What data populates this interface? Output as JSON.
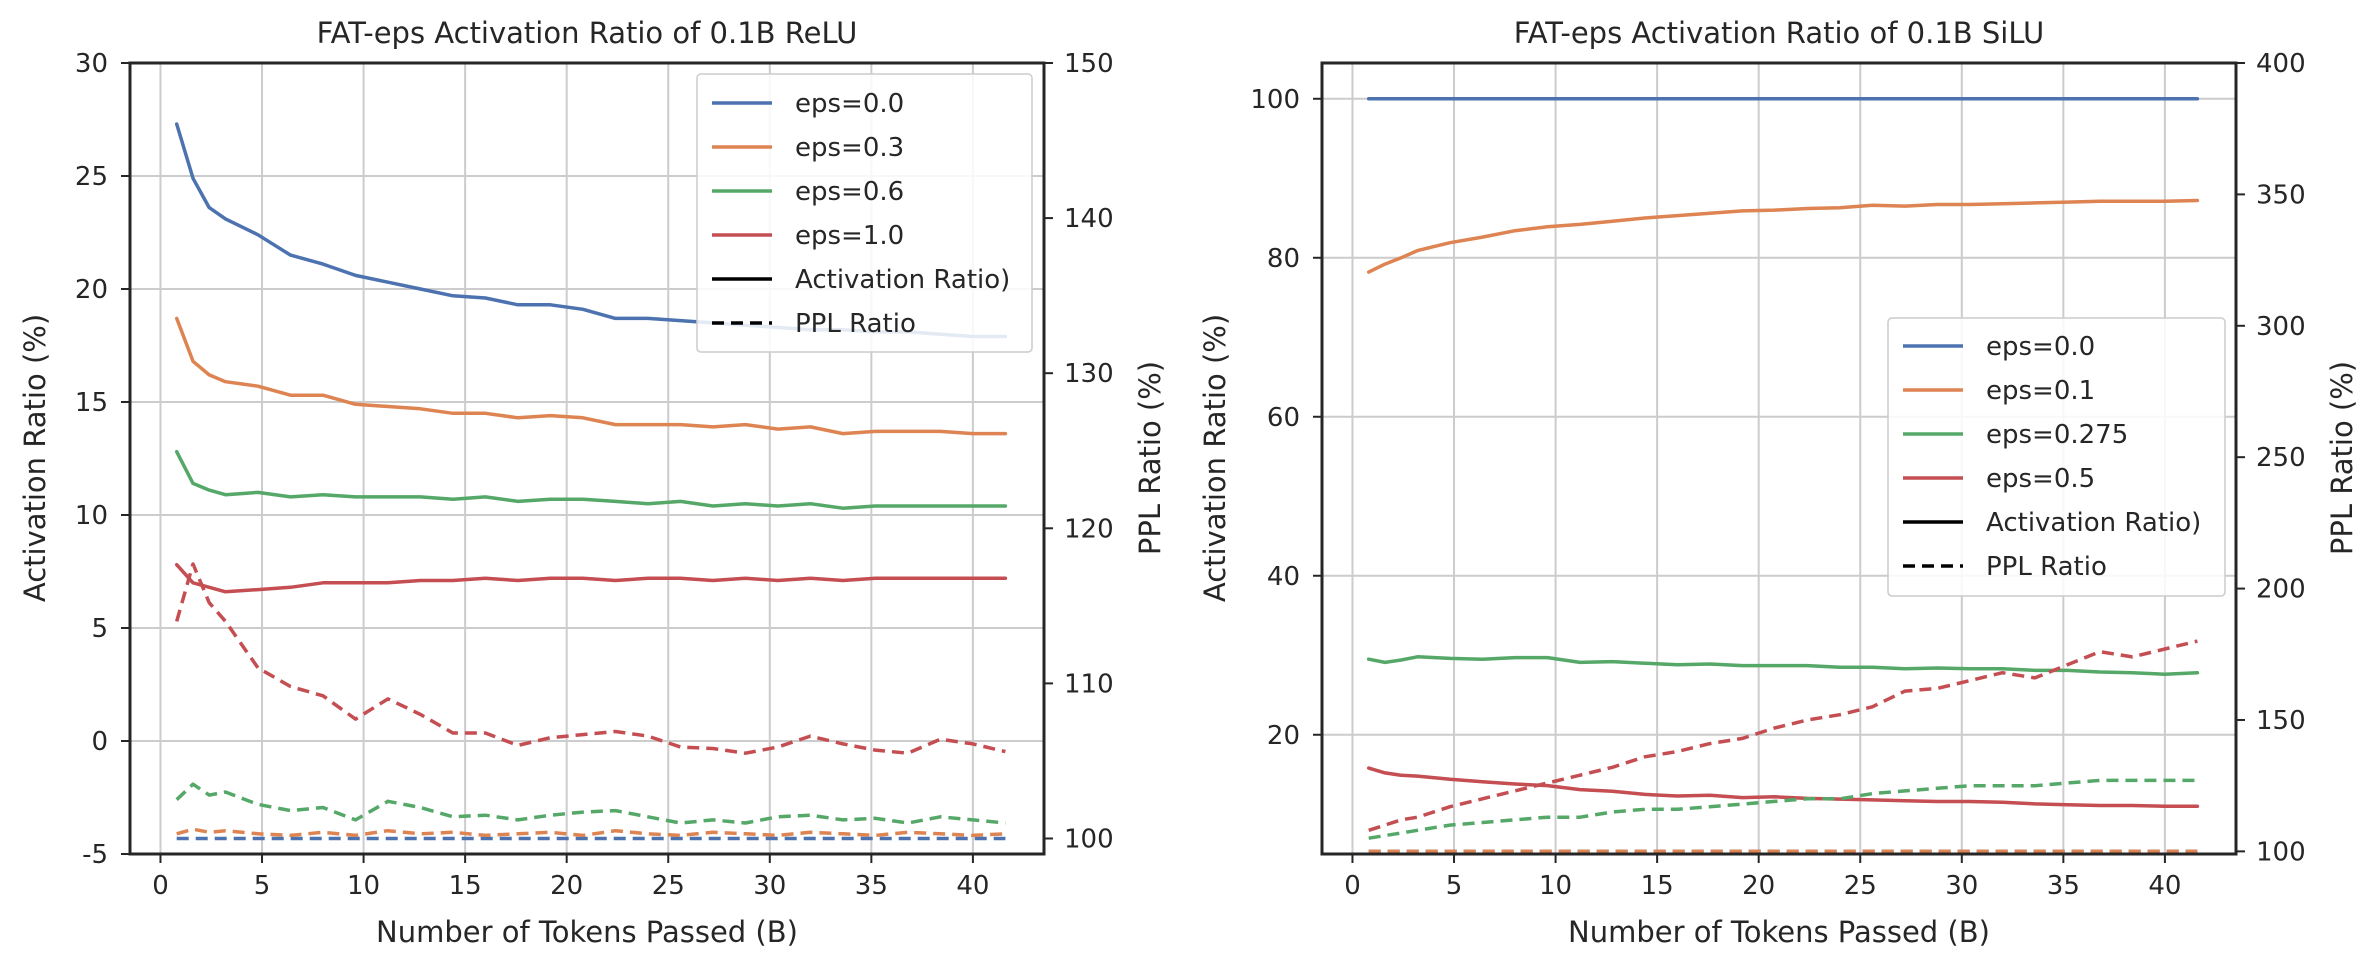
{
  "chart_data": [
    {
      "type": "line",
      "title": "FAT-eps Activation Ratio of 0.1B ReLU",
      "xlabel": "Number of Tokens Passed (B)",
      "ylabel": "Activation Ratio (%)",
      "y2label": "PPL Ratio (%)",
      "xlim": [
        -1.5,
        43.5
      ],
      "ylim": [
        -5,
        30
      ],
      "y2lim": [
        99,
        150
      ],
      "xticks": [
        0,
        5,
        10,
        15,
        20,
        25,
        30,
        35,
        40
      ],
      "yticks": [
        -5,
        0,
        5,
        10,
        15,
        20,
        25,
        30
      ],
      "y2ticks": [
        100,
        110,
        120,
        130,
        140,
        150
      ],
      "grid": true,
      "legend_position": "top-right",
      "legend": [
        {
          "label": "eps=0.0",
          "color": "#4c72b0",
          "style": "solid"
        },
        {
          "label": "eps=0.3",
          "color": "#dd8452",
          "style": "solid"
        },
        {
          "label": "eps=0.6",
          "color": "#55a868",
          "style": "solid"
        },
        {
          "label": "eps=1.0",
          "color": "#c44e52",
          "style": "solid"
        },
        {
          "label": "Activation Ratio)",
          "color": "#000000",
          "style": "solid"
        },
        {
          "label": "PPL Ratio",
          "color": "#000000",
          "style": "dashed"
        }
      ],
      "x": [
        0.8,
        1.6,
        2.4,
        3.2,
        4.8,
        6.4,
        8.0,
        9.6,
        11.2,
        12.8,
        14.4,
        16.0,
        17.6,
        19.2,
        20.8,
        22.4,
        24.0,
        25.6,
        27.2,
        28.8,
        30.4,
        32.0,
        33.6,
        35.2,
        36.8,
        38.4,
        40.0,
        41.6
      ],
      "series": [
        {
          "name": "eps=0.0",
          "axis": "left",
          "style": "solid",
          "color": "#4c72b0",
          "values": [
            27.3,
            24.9,
            23.6,
            23.1,
            22.4,
            21.5,
            21.1,
            20.6,
            20.3,
            20.0,
            19.7,
            19.6,
            19.3,
            19.3,
            19.1,
            18.7,
            18.7,
            18.6,
            18.5,
            18.4,
            18.3,
            18.2,
            18.2,
            18.1,
            18.1,
            18.0,
            17.9,
            17.9
          ]
        },
        {
          "name": "eps=0.3",
          "axis": "left",
          "style": "solid",
          "color": "#dd8452",
          "values": [
            18.7,
            16.8,
            16.2,
            15.9,
            15.7,
            15.3,
            15.3,
            14.9,
            14.8,
            14.7,
            14.5,
            14.5,
            14.3,
            14.4,
            14.3,
            14.0,
            14.0,
            14.0,
            13.9,
            14.0,
            13.8,
            13.9,
            13.6,
            13.7,
            13.7,
            13.7,
            13.6,
            13.6
          ]
        },
        {
          "name": "eps=0.6",
          "axis": "left",
          "style": "solid",
          "color": "#55a868",
          "values": [
            12.8,
            11.4,
            11.1,
            10.9,
            11.0,
            10.8,
            10.9,
            10.8,
            10.8,
            10.8,
            10.7,
            10.8,
            10.6,
            10.7,
            10.7,
            10.6,
            10.5,
            10.6,
            10.4,
            10.5,
            10.4,
            10.5,
            10.3,
            10.4,
            10.4,
            10.4,
            10.4,
            10.4
          ]
        },
        {
          "name": "eps=1.0",
          "axis": "left",
          "style": "solid",
          "color": "#c44e52",
          "values": [
            7.8,
            7.0,
            6.8,
            6.6,
            6.7,
            6.8,
            7.0,
            7.0,
            7.0,
            7.1,
            7.1,
            7.2,
            7.1,
            7.2,
            7.2,
            7.1,
            7.2,
            7.2,
            7.1,
            7.2,
            7.1,
            7.2,
            7.1,
            7.2,
            7.2,
            7.2,
            7.2,
            7.2
          ]
        },
        {
          "name": "eps=0.0",
          "axis": "right",
          "style": "dashed",
          "color": "#4c72b0",
          "values": [
            100.0,
            100.0,
            100.0,
            100.0,
            100.0,
            100.0,
            100.0,
            100.0,
            100.0,
            100.0,
            100.0,
            100.0,
            100.0,
            100.0,
            100.0,
            100.0,
            100.0,
            100.0,
            100.0,
            100.0,
            100.0,
            100.0,
            100.0,
            100.0,
            100.0,
            100.0,
            100.0,
            100.0
          ]
        },
        {
          "name": "eps=0.3",
          "axis": "right",
          "style": "dashed",
          "color": "#dd8452",
          "values": [
            100.3,
            100.6,
            100.4,
            100.5,
            100.3,
            100.2,
            100.4,
            100.2,
            100.5,
            100.3,
            100.4,
            100.2,
            100.3,
            100.4,
            100.2,
            100.5,
            100.3,
            100.2,
            100.4,
            100.3,
            100.2,
            100.4,
            100.3,
            100.2,
            100.4,
            100.3,
            100.2,
            100.3
          ]
        },
        {
          "name": "eps=0.6",
          "axis": "right",
          "style": "dashed",
          "color": "#55a868",
          "values": [
            102.5,
            103.5,
            102.8,
            103.0,
            102.2,
            101.8,
            102.0,
            101.2,
            102.4,
            102.0,
            101.4,
            101.5,
            101.2,
            101.5,
            101.7,
            101.8,
            101.4,
            101.0,
            101.2,
            101.0,
            101.4,
            101.5,
            101.2,
            101.3,
            101.0,
            101.4,
            101.2,
            101.0
          ]
        },
        {
          "name": "eps=1.0",
          "axis": "right",
          "style": "dashed",
          "color": "#c44e52",
          "values": [
            114.0,
            117.7,
            115.2,
            114.0,
            111.0,
            109.8,
            109.2,
            107.7,
            109.0,
            108.0,
            106.8,
            106.8,
            106.0,
            106.5,
            106.7,
            106.9,
            106.6,
            105.9,
            105.8,
            105.5,
            105.9,
            106.6,
            106.1,
            105.7,
            105.5,
            106.4,
            106.1,
            105.6
          ]
        }
      ]
    },
    {
      "type": "line",
      "title": "FAT-eps Activation Ratio of 0.1B SiLU",
      "xlabel": "Number of Tokens Passed (B)",
      "ylabel": "Activation Ratio (%)",
      "y2label": "PPL Ratio (%)",
      "xlim": [
        -1.5,
        43.5
      ],
      "ylim": [
        5,
        104.5
      ],
      "y2lim": [
        99,
        400
      ],
      "xticks": [
        0,
        5,
        10,
        15,
        20,
        25,
        30,
        35,
        40
      ],
      "yticks": [
        20,
        40,
        60,
        80,
        100
      ],
      "y2ticks": [
        100,
        150,
        200,
        250,
        300,
        350,
        400
      ],
      "grid": true,
      "legend_position": "center-right",
      "legend": [
        {
          "label": "eps=0.0",
          "color": "#4c72b0",
          "style": "solid"
        },
        {
          "label": "eps=0.1",
          "color": "#dd8452",
          "style": "solid"
        },
        {
          "label": "eps=0.275",
          "color": "#55a868",
          "style": "solid"
        },
        {
          "label": "eps=0.5",
          "color": "#c44e52",
          "style": "solid"
        },
        {
          "label": "Activation Ratio)",
          "color": "#000000",
          "style": "solid"
        },
        {
          "label": "PPL Ratio",
          "color": "#000000",
          "style": "dashed"
        }
      ],
      "x": [
        0.8,
        1.6,
        2.4,
        3.2,
        4.8,
        6.4,
        8.0,
        9.6,
        11.2,
        12.8,
        14.4,
        16.0,
        17.6,
        19.2,
        20.8,
        22.4,
        24.0,
        25.6,
        27.2,
        28.8,
        30.4,
        32.0,
        33.6,
        35.2,
        36.8,
        38.4,
        40.0,
        41.6
      ],
      "series": [
        {
          "name": "eps=0.0",
          "axis": "left",
          "style": "solid",
          "color": "#4c72b0",
          "values": [
            100,
            100,
            100,
            100,
            100,
            100,
            100,
            100,
            100,
            100,
            100,
            100,
            100,
            100,
            100,
            100,
            100,
            100,
            100,
            100,
            100,
            100,
            100,
            100,
            100,
            100,
            100,
            100
          ]
        },
        {
          "name": "eps=0.1",
          "axis": "left",
          "style": "solid",
          "color": "#dd8452",
          "values": [
            78.2,
            79.2,
            80.0,
            80.9,
            81.9,
            82.6,
            83.4,
            83.9,
            84.2,
            84.6,
            85.0,
            85.3,
            85.6,
            85.9,
            86.0,
            86.2,
            86.3,
            86.6,
            86.5,
            86.7,
            86.7,
            86.8,
            86.9,
            87.0,
            87.1,
            87.1,
            87.1,
            87.2
          ]
        },
        {
          "name": "eps=0.275",
          "axis": "left",
          "style": "solid",
          "color": "#55a868",
          "values": [
            29.5,
            29.1,
            29.4,
            29.8,
            29.6,
            29.5,
            29.7,
            29.7,
            29.1,
            29.2,
            29.0,
            28.8,
            28.9,
            28.7,
            28.7,
            28.7,
            28.5,
            28.5,
            28.3,
            28.4,
            28.3,
            28.3,
            28.1,
            28.1,
            27.9,
            27.8,
            27.6,
            27.8
          ]
        },
        {
          "name": "eps=0.5",
          "axis": "left",
          "style": "solid",
          "color": "#c44e52",
          "values": [
            15.8,
            15.2,
            14.9,
            14.8,
            14.4,
            14.1,
            13.8,
            13.6,
            13.1,
            12.9,
            12.5,
            12.3,
            12.4,
            12.1,
            12.2,
            12.0,
            11.9,
            11.8,
            11.7,
            11.6,
            11.6,
            11.5,
            11.3,
            11.2,
            11.1,
            11.1,
            11.0,
            11.0
          ]
        },
        {
          "name": "eps=0.0",
          "axis": "right",
          "style": "dashed",
          "color": "#4c72b0",
          "values": [
            100.0,
            100.0,
            100.0,
            100.0,
            100.0,
            100.0,
            100.0,
            100.0,
            100.0,
            100.0,
            100.0,
            100.0,
            100.0,
            100.0,
            100.0,
            100.0,
            100.0,
            100.0,
            100.0,
            100.0,
            100.0,
            100.0,
            100.0,
            100.0,
            100.0,
            100.0,
            100.0,
            100.0
          ]
        },
        {
          "name": "eps=0.1",
          "axis": "right",
          "style": "dashed",
          "color": "#dd8452",
          "values": [
            100.0,
            100.0,
            100.0,
            100.0,
            100.0,
            100.0,
            100.0,
            100.0,
            100.0,
            100.0,
            100.0,
            100.0,
            100.0,
            100.0,
            100.0,
            100.0,
            100.0,
            100.0,
            100.0,
            100.0,
            100.0,
            100.0,
            100.0,
            100.0,
            100.0,
            100.0,
            100.0,
            100.0
          ]
        },
        {
          "name": "eps=0.275",
          "axis": "right",
          "style": "dashed",
          "color": "#55a868",
          "values": [
            105,
            106,
            107,
            108,
            110,
            111,
            112,
            113,
            113,
            115,
            116,
            116,
            117,
            118,
            119,
            120,
            120,
            122,
            123,
            124,
            125,
            125,
            125,
            126,
            127,
            127,
            127,
            127
          ]
        },
        {
          "name": "eps=0.5",
          "axis": "right",
          "style": "dashed",
          "color": "#c44e52",
          "values": [
            108,
            110,
            112,
            113,
            117,
            120,
            123,
            126,
            129,
            132,
            136,
            138,
            141,
            143,
            147,
            150,
            152,
            155,
            161,
            162,
            165,
            168,
            166,
            171,
            176,
            174,
            177,
            180
          ]
        }
      ]
    }
  ]
}
